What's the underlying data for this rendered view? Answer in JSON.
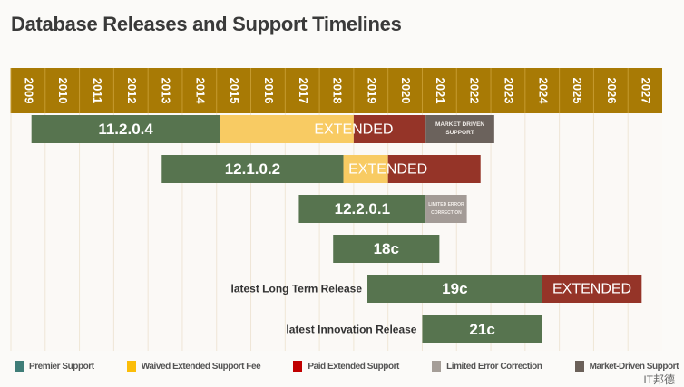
{
  "title": "Database Releases and Support Timelines",
  "colors": {
    "header": "#a87a05",
    "premier": "#57744f",
    "waived": "#f8cb63",
    "paid": "#953428",
    "market": "#6b625c",
    "limited": "#a39b96"
  },
  "chart_data": {
    "type": "gantt",
    "title": "Database Releases and Support Timelines",
    "years": [
      "2009",
      "2010",
      "2011",
      "2012",
      "2013",
      "2014",
      "2015",
      "2016",
      "2017",
      "2018",
      "2019",
      "2020",
      "2021",
      "2022",
      "2023",
      "2024",
      "2025",
      "2026",
      "2027"
    ],
    "xlim": [
      2009,
      2028
    ],
    "rows": [
      {
        "release": "11.2.0.4",
        "side_label": "",
        "extended_label": "EXTENDED",
        "segments": [
          {
            "type": "premier",
            "start": 2009.6,
            "end": 2015.1
          },
          {
            "type": "waived",
            "start": 2015.1,
            "end": 2019.0
          },
          {
            "type": "paid",
            "start": 2019.0,
            "end": 2021.1
          },
          {
            "type": "market",
            "start": 2021.1,
            "end": 2023.1,
            "label": "MARKET DRIVEN SUPPORT"
          }
        ]
      },
      {
        "release": "12.1.0.2",
        "side_label": "",
        "extended_label": "EXTENDED",
        "segments": [
          {
            "type": "premier",
            "start": 2013.4,
            "end": 2018.7
          },
          {
            "type": "waived",
            "start": 2018.7,
            "end": 2020.0
          },
          {
            "type": "paid",
            "start": 2020.0,
            "end": 2022.7
          }
        ]
      },
      {
        "release": "12.2.0.1",
        "side_label": "",
        "extended_label": "",
        "segments": [
          {
            "type": "premier",
            "start": 2017.4,
            "end": 2021.1
          },
          {
            "type": "limited",
            "start": 2021.1,
            "end": 2022.3,
            "label": "LIMITED ERROR CORRECTION"
          }
        ]
      },
      {
        "release": "18c",
        "side_label": "",
        "extended_label": "",
        "segments": [
          {
            "type": "premier",
            "start": 2018.4,
            "end": 2021.5
          }
        ]
      },
      {
        "release": "19c",
        "side_label": "latest Long Term Release",
        "extended_label": "EXTENDED",
        "segments": [
          {
            "type": "premier",
            "start": 2019.4,
            "end": 2024.5
          },
          {
            "type": "paid",
            "start": 2024.5,
            "end": 2027.4
          }
        ]
      },
      {
        "release": "21c",
        "side_label": "latest Innovation Release",
        "extended_label": "",
        "segments": [
          {
            "type": "premier",
            "start": 2021.0,
            "end": 2024.5
          }
        ]
      }
    ],
    "legend": [
      {
        "label": "Premier Support",
        "color": "#3f7d78"
      },
      {
        "label": "Waived Extended Support Fee",
        "color": "#fbbd09"
      },
      {
        "label": "Paid Extended Support",
        "color": "#c00000"
      },
      {
        "label": "Limited Error Correction",
        "color": "#a59e98"
      },
      {
        "label": "Market-Driven Support",
        "color": "#6b6059"
      }
    ]
  },
  "watermark": "IT邦德"
}
